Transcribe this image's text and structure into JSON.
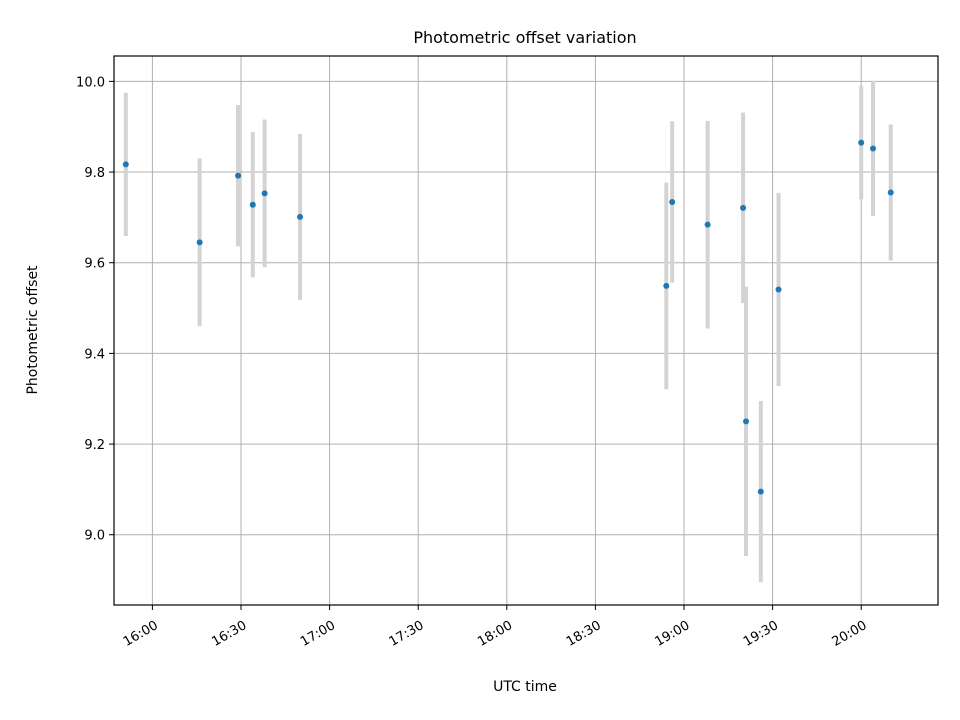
{
  "chart_data": {
    "type": "scatter",
    "title": "Photometric offset variation",
    "xlabel": "UTC time",
    "ylabel": "Photometric offset",
    "grid": true,
    "xlim": [
      "15:47",
      "20:26"
    ],
    "ylim": [
      8.845,
      10.056
    ],
    "x_ticks": [
      "16:00",
      "16:30",
      "17:00",
      "17:30",
      "18:00",
      "18:30",
      "19:00",
      "19:30",
      "20:00"
    ],
    "y_ticks": [
      "9.0",
      "9.2",
      "9.4",
      "9.6",
      "9.8",
      "10.0"
    ],
    "series": [
      {
        "marker_color": "#1f77b4",
        "errorbar_color": "#d3d3d3",
        "points": [
          {
            "x": "15:51",
            "y": 9.817,
            "yerr": 0.158
          },
          {
            "x": "16:16",
            "y": 9.645,
            "yerr": 0.185
          },
          {
            "x": "16:29",
            "y": 9.792,
            "yerr": 0.156
          },
          {
            "x": "16:34",
            "y": 9.728,
            "yerr": 0.16
          },
          {
            "x": "16:38",
            "y": 9.753,
            "yerr": 0.163
          },
          {
            "x": "16:50",
            "y": 9.701,
            "yerr": 0.183
          },
          {
            "x": "18:54",
            "y": 9.549,
            "yerr": 0.228
          },
          {
            "x": "18:56",
            "y": 9.734,
            "yerr": 0.178
          },
          {
            "x": "19:08",
            "y": 9.684,
            "yerr": 0.229
          },
          {
            "x": "19:20",
            "y": 9.721,
            "yerr": 0.21
          },
          {
            "x": "19:21",
            "y": 9.25,
            "yerr": 0.297
          },
          {
            "x": "19:26",
            "y": 9.095,
            "yerr": 0.2
          },
          {
            "x": "19:32",
            "y": 9.541,
            "yerr": 0.213
          },
          {
            "x": "20:00",
            "y": 9.865,
            "yerr": 0.125
          },
          {
            "x": "20:04",
            "y": 9.852,
            "yerr": 0.149
          },
          {
            "x": "20:10",
            "y": 9.755,
            "yerr": 0.15
          }
        ]
      }
    ]
  }
}
